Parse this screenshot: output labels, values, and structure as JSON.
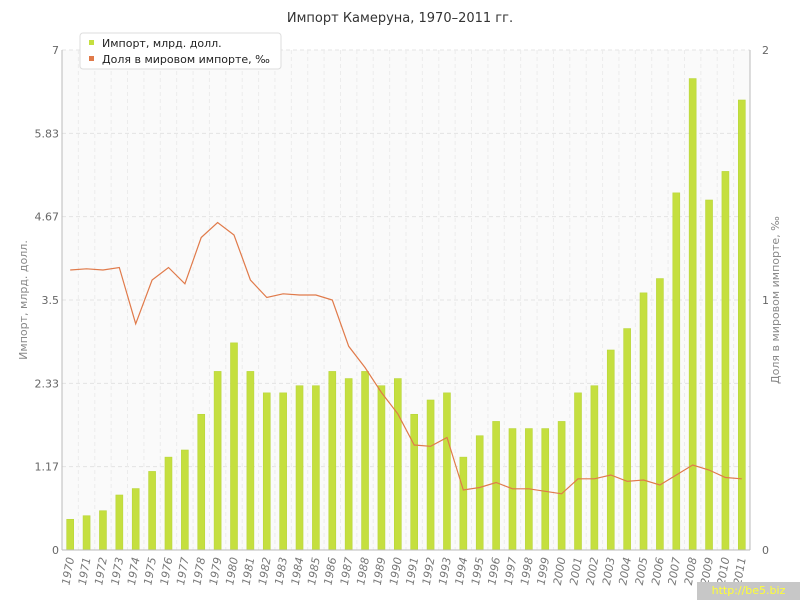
{
  "chart_data": {
    "type": "bar+line",
    "title": "Импорт Камеруна, 1970–2011 гг.",
    "ylabel_left": "Импорт, млрд. долл.",
    "ylabel_right": "Доля в мировом импорте, ‰",
    "ylim_left": [
      0,
      7
    ],
    "ylim_right": [
      0,
      2
    ],
    "yticks_left": [
      "0",
      "1.17",
      "2.33",
      "3.5",
      "4.67",
      "5.83",
      "7"
    ],
    "yticks_right": [
      "0",
      "1",
      "2"
    ],
    "legend_position": "top-left",
    "grid": true,
    "categories": [
      "1970",
      "1971",
      "1972",
      "1973",
      "1974",
      "1975",
      "1976",
      "1977",
      "1978",
      "1979",
      "1980",
      "1981",
      "1982",
      "1983",
      "1984",
      "1985",
      "1986",
      "1987",
      "1988",
      "1989",
      "1990",
      "1991",
      "1992",
      "1993",
      "1994",
      "1995",
      "1996",
      "1997",
      "1998",
      "1999",
      "2000",
      "2001",
      "2002",
      "2003",
      "2004",
      "2005",
      "2006",
      "2007",
      "2008",
      "2009",
      "2010",
      "2011"
    ],
    "series": [
      {
        "name": "Импорт, млрд. долл.",
        "type": "bar",
        "axis": "left",
        "color": "#c5df3f",
        "values": [
          0.43,
          0.48,
          0.55,
          0.77,
          0.86,
          1.1,
          1.3,
          1.4,
          1.9,
          2.5,
          2.9,
          2.5,
          2.2,
          2.2,
          2.3,
          2.3,
          2.5,
          2.4,
          2.5,
          2.3,
          2.4,
          1.9,
          2.1,
          2.2,
          1.3,
          1.6,
          1.8,
          1.7,
          1.7,
          1.7,
          1.8,
          2.2,
          2.3,
          2.8,
          3.1,
          3.6,
          3.8,
          5.0,
          6.6,
          4.9,
          5.3,
          6.3
        ]
      },
      {
        "name": "Доля в мировом импорте, ‰",
        "type": "line",
        "axis": "right",
        "color": "#e07a4a",
        "values": [
          1.12,
          1.125,
          1.12,
          1.13,
          0.905,
          1.08,
          1.13,
          1.065,
          1.25,
          1.31,
          1.26,
          1.08,
          1.01,
          1.025,
          1.02,
          1.02,
          1.0,
          0.815,
          0.73,
          0.63,
          0.545,
          0.42,
          0.415,
          0.45,
          0.24,
          0.25,
          0.27,
          0.245,
          0.245,
          0.235,
          0.225,
          0.285,
          0.285,
          0.3,
          0.275,
          0.28,
          0.26,
          0.3,
          0.34,
          0.32,
          0.29,
          0.285
        ]
      }
    ]
  },
  "watermark": "http://be5.biz"
}
